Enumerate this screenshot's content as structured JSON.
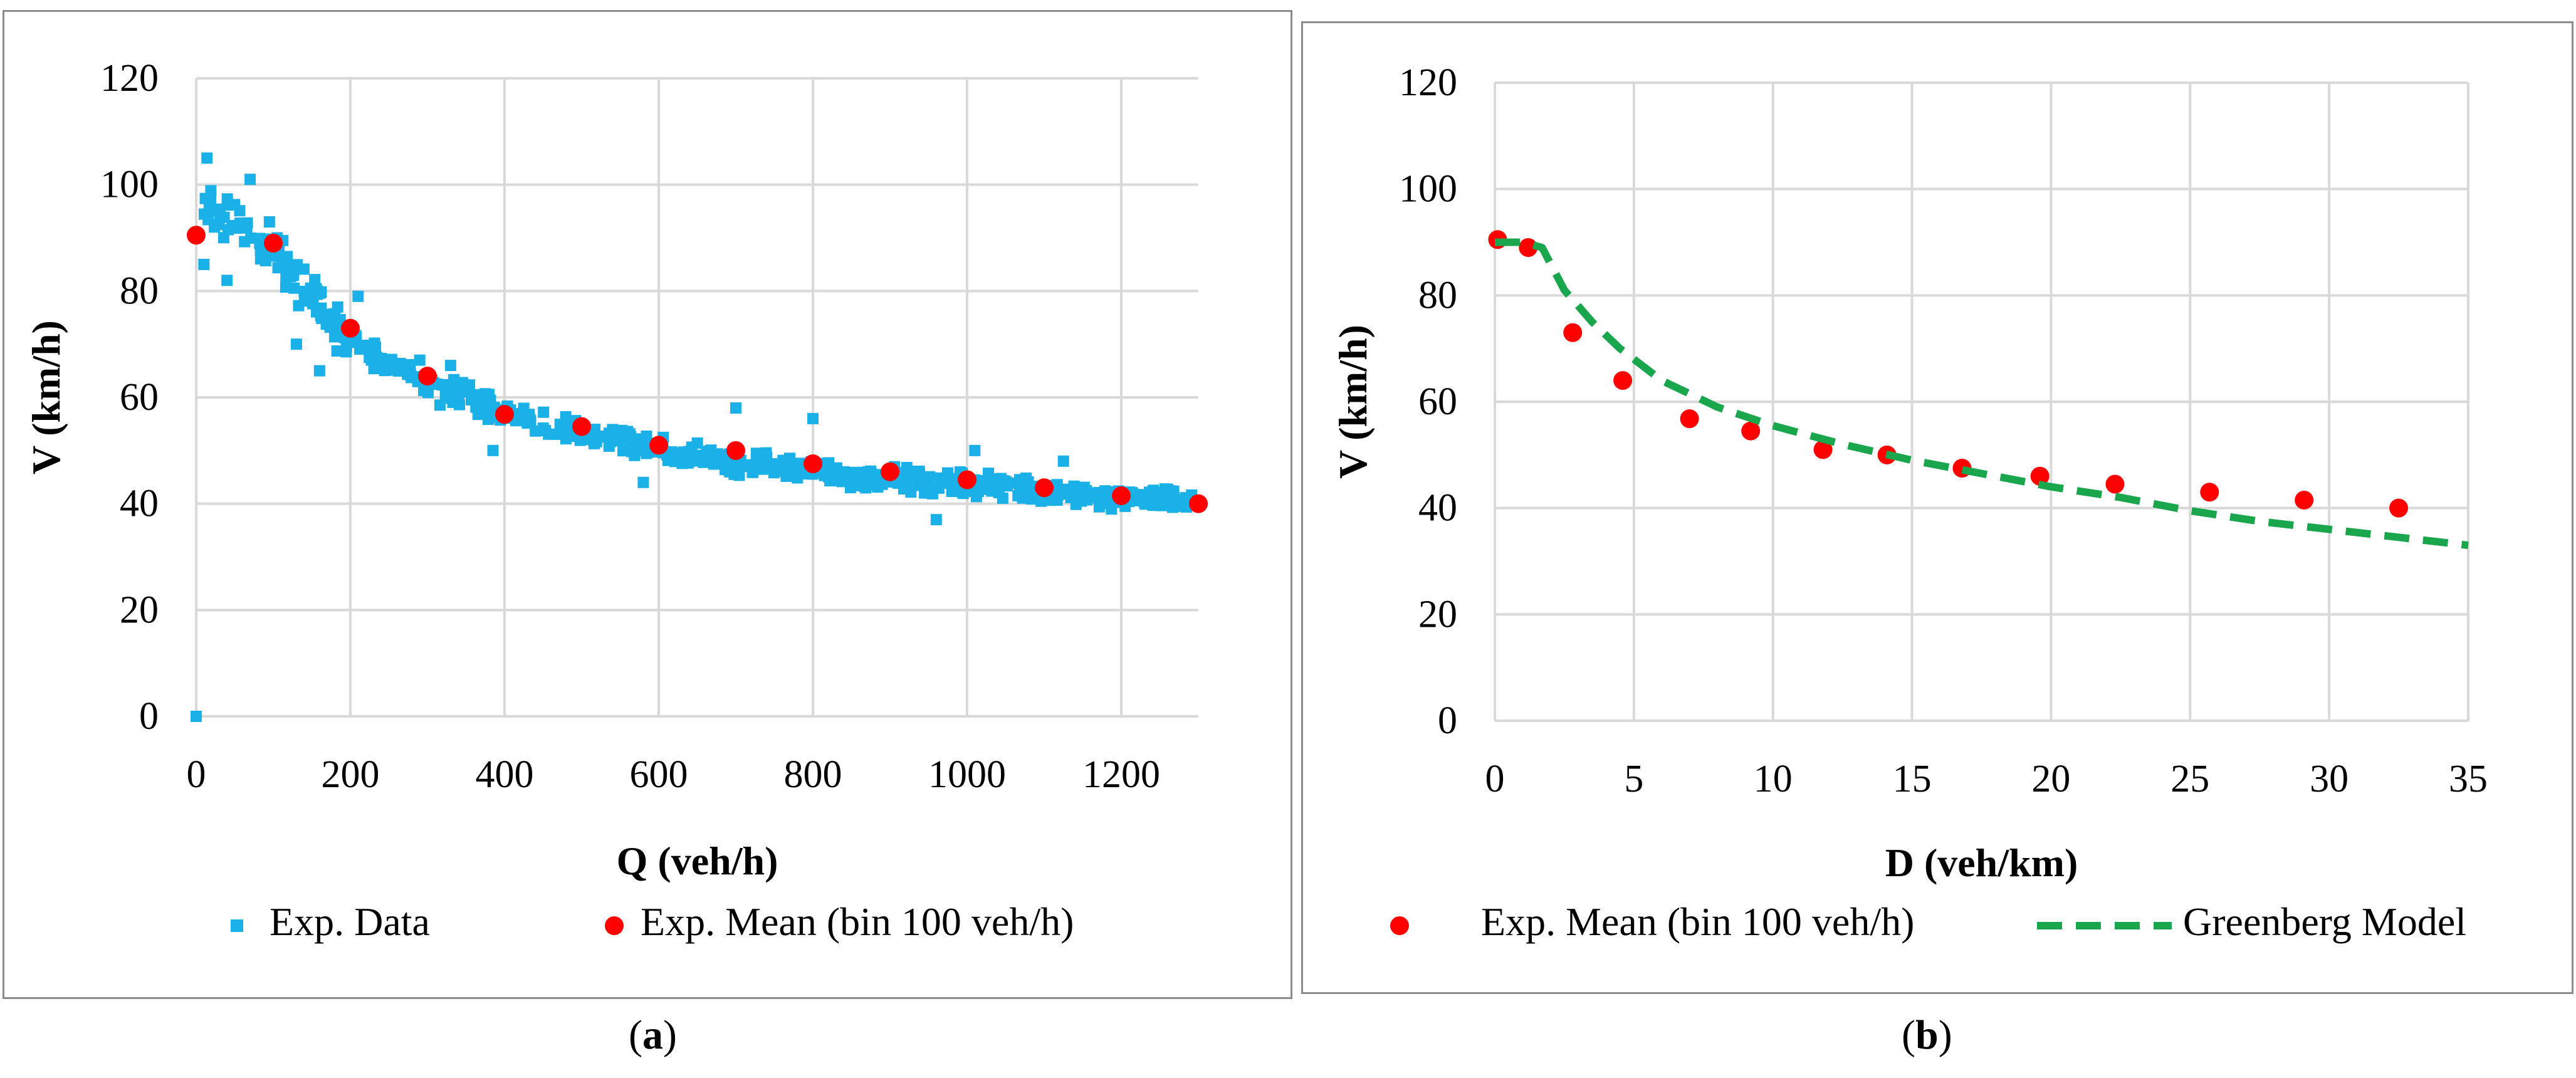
{
  "colors": {
    "data_points": "#1ab0e8",
    "mean_points": "#ff0000",
    "model_line": "#1aa64c",
    "grid": "#d9d9d9",
    "border": "#8c8c8c"
  },
  "captions": [
    {
      "open": "(",
      "letter": "a",
      "close": ")"
    },
    {
      "open": "(",
      "letter": "b",
      "close": ")"
    }
  ],
  "chart_data": [
    {
      "type": "scatter",
      "xlabel": "Q (veh/h)",
      "ylabel": "V (km/h)",
      "xlim": [
        0,
        1300
      ],
      "ylim": [
        0,
        120
      ],
      "xticks": [
        0,
        200,
        400,
        600,
        800,
        1000,
        1200
      ],
      "yticks": [
        0,
        20,
        40,
        60,
        80,
        100,
        120
      ],
      "grid": true,
      "legend_position": "bottom",
      "series": [
        {
          "name": "Exp. Data",
          "marker": "square",
          "color": "#1ab0e8",
          "trend": [
            [
              5,
              97
            ],
            [
              25,
              95
            ],
            [
              50,
              93
            ],
            [
              75,
              90
            ],
            [
              100,
              87
            ],
            [
              125,
              83
            ],
            [
              150,
              79
            ],
            [
              175,
              74
            ],
            [
              200,
              71
            ],
            [
              250,
              66
            ],
            [
              300,
              62
            ],
            [
              350,
              60
            ],
            [
              400,
              57
            ],
            [
              450,
              55
            ],
            [
              500,
              53
            ],
            [
              550,
              52
            ],
            [
              600,
              50
            ],
            [
              650,
              49
            ],
            [
              700,
              48
            ],
            [
              750,
              47
            ],
            [
              800,
              46
            ],
            [
              850,
              45
            ],
            [
              900,
              45
            ],
            [
              950,
              44
            ],
            [
              1000,
              44
            ],
            [
              1050,
              43
            ],
            [
              1100,
              42
            ],
            [
              1150,
              42
            ],
            [
              1200,
              41
            ],
            [
              1250,
              41
            ],
            [
              1300,
              40
            ]
          ],
          "outliers": [
            [
              0,
              0
            ],
            [
              14,
              105
            ],
            [
              10,
              85
            ],
            [
              40,
              82
            ],
            [
              70,
              101
            ],
            [
              95,
              93
            ],
            [
              105,
              90
            ],
            [
              130,
              70
            ],
            [
              160,
              65
            ],
            [
              210,
              79
            ],
            [
              290,
              67
            ],
            [
              330,
              66
            ],
            [
              385,
              50
            ],
            [
              580,
              44
            ],
            [
              700,
              58
            ],
            [
              800,
              56
            ],
            [
              855,
              44
            ],
            [
              960,
              37
            ],
            [
              1010,
              50
            ],
            [
              1125,
              48
            ]
          ]
        },
        {
          "name": "Exp. Mean (bin 100 veh/h)",
          "marker": "circle",
          "color": "#ff0000",
          "x": [
            0,
            100,
            200,
            300,
            400,
            500,
            600,
            700,
            800,
            900,
            1000,
            1100,
            1200,
            1300
          ],
          "y": [
            90.5,
            89.0,
            73.0,
            64.0,
            56.8,
            54.5,
            51.0,
            50.0,
            47.5,
            46.0,
            44.5,
            43.0,
            41.5,
            40.0
          ]
        }
      ]
    },
    {
      "type": "scatter",
      "xlabel": "D (veh/km)",
      "ylabel": "V (km/h)",
      "xlim": [
        0,
        35
      ],
      "ylim": [
        0,
        120
      ],
      "xticks": [
        0,
        5,
        10,
        15,
        20,
        25,
        30,
        35
      ],
      "yticks": [
        0,
        20,
        40,
        60,
        80,
        100,
        120
      ],
      "grid": true,
      "legend_position": "bottom",
      "series": [
        {
          "name": "Exp. Mean (bin 100 veh/h)",
          "marker": "circle",
          "color": "#ff0000",
          "x": [
            0.1,
            1.2,
            2.8,
            4.6,
            7.0,
            9.2,
            11.8,
            14.1,
            16.8,
            19.6,
            22.3,
            25.7,
            29.1,
            32.5
          ],
          "y": [
            90.5,
            89.0,
            73.0,
            64.0,
            56.8,
            54.5,
            51.0,
            50.0,
            47.5,
            46.0,
            44.5,
            43.0,
            41.5,
            40.0
          ]
        },
        {
          "name": "Greenberg Model",
          "line": "dashed",
          "color": "#1aa64c",
          "x": [
            0,
            1,
            1.7,
            2.5,
            3.5,
            4.5,
            6,
            8,
            10,
            12.5,
            15,
            17.5,
            20,
            22.5,
            25,
            27.5,
            30,
            32.5,
            35
          ],
          "y": [
            90,
            90,
            89,
            81,
            75,
            70,
            64,
            59,
            55.5,
            52,
            49,
            46.5,
            44,
            42,
            39.5,
            37.5,
            36,
            34.5,
            33
          ]
        }
      ]
    }
  ]
}
